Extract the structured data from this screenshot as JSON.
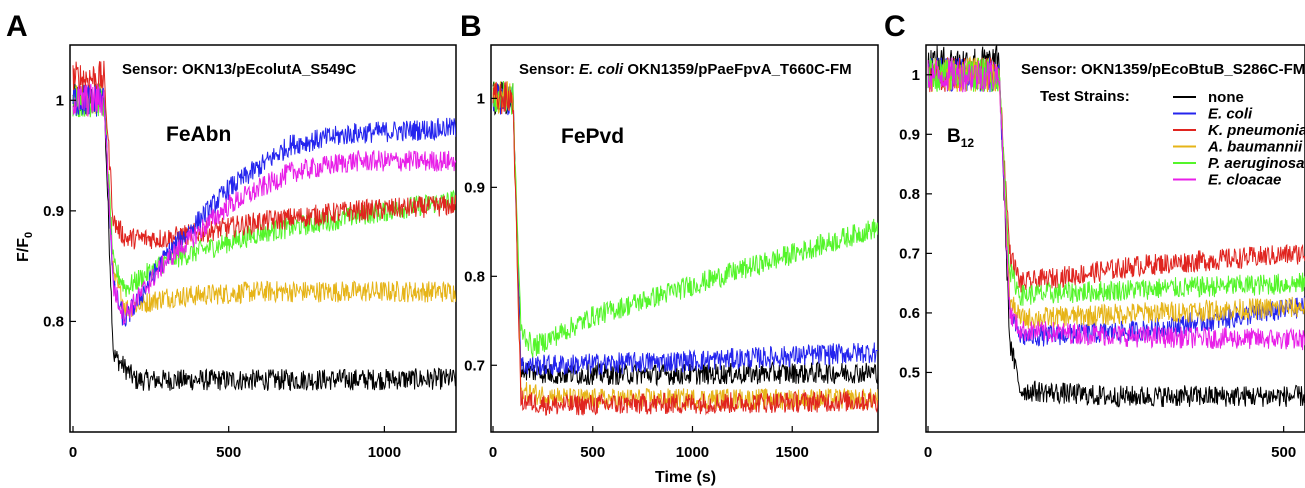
{
  "chart_data": [
    {
      "type": "line",
      "panel_label": "A",
      "annotation": "Sensor: OKN13/pEcolutA_S549C",
      "ligand": "FeAbn",
      "ylabel_main": "F/F",
      "ylabel_sub": "0",
      "xlim": [
        0,
        1230
      ],
      "ylim": [
        0.7,
        1.05
      ],
      "xticks": [
        0,
        500,
        1000
      ],
      "yticks": [
        0.8,
        0.9,
        1
      ],
      "ytick_labels": [
        "0.8",
        "0.9",
        "1"
      ],
      "drop_time": 100,
      "series": [
        {
          "color": "#000000",
          "points": [
            [
              0,
              1.0
            ],
            [
              100,
              1.0
            ],
            [
              130,
              0.77
            ],
            [
              200,
              0.747
            ],
            [
              600,
              0.747
            ],
            [
              1230,
              0.748
            ]
          ]
        },
        {
          "color": "#e6b418",
          "points": [
            [
              0,
              1.0
            ],
            [
              100,
              1.0
            ],
            [
              130,
              0.84
            ],
            [
              170,
              0.812
            ],
            [
              300,
              0.822
            ],
            [
              600,
              0.827
            ],
            [
              1230,
              0.827
            ]
          ]
        },
        {
          "color": "#54f52a",
          "points": [
            [
              0,
              1.0
            ],
            [
              100,
              1.0
            ],
            [
              130,
              0.85
            ],
            [
              170,
              0.83
            ],
            [
              300,
              0.855
            ],
            [
              600,
              0.88
            ],
            [
              900,
              0.895
            ],
            [
              1230,
              0.91
            ]
          ]
        },
        {
          "color": "#e0241f",
          "points": [
            [
              0,
              1.02
            ],
            [
              100,
              1.02
            ],
            [
              130,
              0.89
            ],
            [
              170,
              0.875
            ],
            [
              300,
              0.875
            ],
            [
              600,
              0.89
            ],
            [
              900,
              0.9
            ],
            [
              1230,
              0.905
            ]
          ]
        },
        {
          "color": "#2424ee",
          "points": [
            [
              0,
              1.0
            ],
            [
              100,
              1.0
            ],
            [
              130,
              0.83
            ],
            [
              165,
              0.8
            ],
            [
              300,
              0.86
            ],
            [
              500,
              0.92
            ],
            [
              700,
              0.96
            ],
            [
              900,
              0.97
            ],
            [
              1230,
              0.975
            ]
          ]
        },
        {
          "color": "#e81fe8",
          "points": [
            [
              0,
              1.0
            ],
            [
              100,
              1.0
            ],
            [
              130,
              0.83
            ],
            [
              165,
              0.805
            ],
            [
              300,
              0.855
            ],
            [
              500,
              0.905
            ],
            [
              700,
              0.935
            ],
            [
              900,
              0.945
            ],
            [
              1230,
              0.945
            ]
          ]
        }
      ]
    },
    {
      "type": "line",
      "panel_label": "B",
      "annotation_prefix": "Sensor: ",
      "annotation_species": "E. coli",
      "annotation_suffix": " OKN1359/pPaeFpvA_T660C-FM",
      "ligand": "FePvd",
      "xlabel": "Time (s)",
      "xlim": [
        0,
        1930
      ],
      "ylim": [
        0.625,
        1.06
      ],
      "xticks": [
        0,
        500,
        1000,
        1500
      ],
      "yticks": [
        0.7,
        0.8,
        0.9,
        1
      ],
      "ytick_labels": [
        "0.7",
        "0.8",
        "0.9",
        "1"
      ],
      "drop_time": 100,
      "series": [
        {
          "color": "#000000",
          "points": [
            [
              0,
              1.0
            ],
            [
              100,
              1.0
            ],
            [
              140,
              0.695
            ],
            [
              300,
              0.69
            ],
            [
              1000,
              0.69
            ],
            [
              1930,
              0.692
            ]
          ]
        },
        {
          "color": "#2424ee",
          "points": [
            [
              0,
              1.0
            ],
            [
              100,
              1.0
            ],
            [
              140,
              0.7
            ],
            [
              300,
              0.7
            ],
            [
              1000,
              0.705
            ],
            [
              1930,
              0.715
            ]
          ]
        },
        {
          "color": "#54f52a",
          "points": [
            [
              0,
              1.0
            ],
            [
              100,
              1.0
            ],
            [
              140,
              0.74
            ],
            [
              200,
              0.72
            ],
            [
              500,
              0.755
            ],
            [
              1000,
              0.79
            ],
            [
              1500,
              0.825
            ],
            [
              1930,
              0.855
            ]
          ]
        },
        {
          "color": "#e6b418",
          "points": [
            [
              0,
              1.0
            ],
            [
              100,
              1.0
            ],
            [
              140,
              0.67
            ],
            [
              400,
              0.662
            ],
            [
              1930,
              0.662
            ]
          ]
        },
        {
          "color": "#e0241f",
          "points": [
            [
              0,
              1.0
            ],
            [
              100,
              1.0
            ],
            [
              140,
              0.66
            ],
            [
              300,
              0.655
            ],
            [
              1930,
              0.66
            ]
          ]
        }
      ]
    },
    {
      "type": "line",
      "panel_label": "C",
      "annotation": "Sensor: OKN1359/pEcoBtuB_S286C-FM",
      "ligand_main": "B",
      "ligand_sub": "12",
      "xlim": [
        0,
        530
      ],
      "ylim": [
        0.4,
        1.05
      ],
      "xticks": [
        0,
        500
      ],
      "yticks": [
        0.5,
        0.6,
        0.7,
        0.8,
        0.9,
        1
      ],
      "ytick_labels": [
        "0.5",
        "0.6",
        "0.7",
        "0.8",
        "0.9",
        "1"
      ],
      "drop_time": 100,
      "legend_title": "Test Strains:",
      "legend_position": "top-right",
      "series": [
        {
          "name": "none",
          "italic": false,
          "color": "#000000",
          "points": [
            [
              0,
              1.02
            ],
            [
              100,
              1.02
            ],
            [
              115,
              0.55
            ],
            [
              130,
              0.47
            ],
            [
              250,
              0.46
            ],
            [
              530,
              0.46
            ]
          ]
        },
        {
          "name": "E. coli",
          "italic": true,
          "color": "#2424ee",
          "points": [
            [
              0,
              1.0
            ],
            [
              100,
              1.0
            ],
            [
              115,
              0.6
            ],
            [
              130,
              0.56
            ],
            [
              300,
              0.57
            ],
            [
              530,
              0.61
            ]
          ]
        },
        {
          "name": "K. pneumoniae",
          "italic": true,
          "color": "#e0241f",
          "points": [
            [
              0,
              1.0
            ],
            [
              100,
              1.0
            ],
            [
              115,
              0.7
            ],
            [
              130,
              0.65
            ],
            [
              300,
              0.68
            ],
            [
              530,
              0.7
            ]
          ]
        },
        {
          "name": "A. baumannii",
          "italic": true,
          "color": "#e6b418",
          "points": [
            [
              0,
              1.0
            ],
            [
              100,
              1.0
            ],
            [
              115,
              0.62
            ],
            [
              130,
              0.59
            ],
            [
              300,
              0.6
            ],
            [
              530,
              0.61
            ]
          ]
        },
        {
          "name": "P. aeruginosa",
          "italic": true,
          "color": "#54f52a",
          "points": [
            [
              0,
              1.0
            ],
            [
              100,
              1.0
            ],
            [
              115,
              0.67
            ],
            [
              130,
              0.63
            ],
            [
              300,
              0.64
            ],
            [
              530,
              0.65
            ]
          ]
        },
        {
          "name": "E. cloacae",
          "italic": true,
          "color": "#e81fe8",
          "points": [
            [
              0,
              1.0
            ],
            [
              100,
              1.0
            ],
            [
              115,
              0.6
            ],
            [
              130,
              0.57
            ],
            [
              300,
              0.56
            ],
            [
              530,
              0.555
            ]
          ]
        }
      ]
    }
  ]
}
